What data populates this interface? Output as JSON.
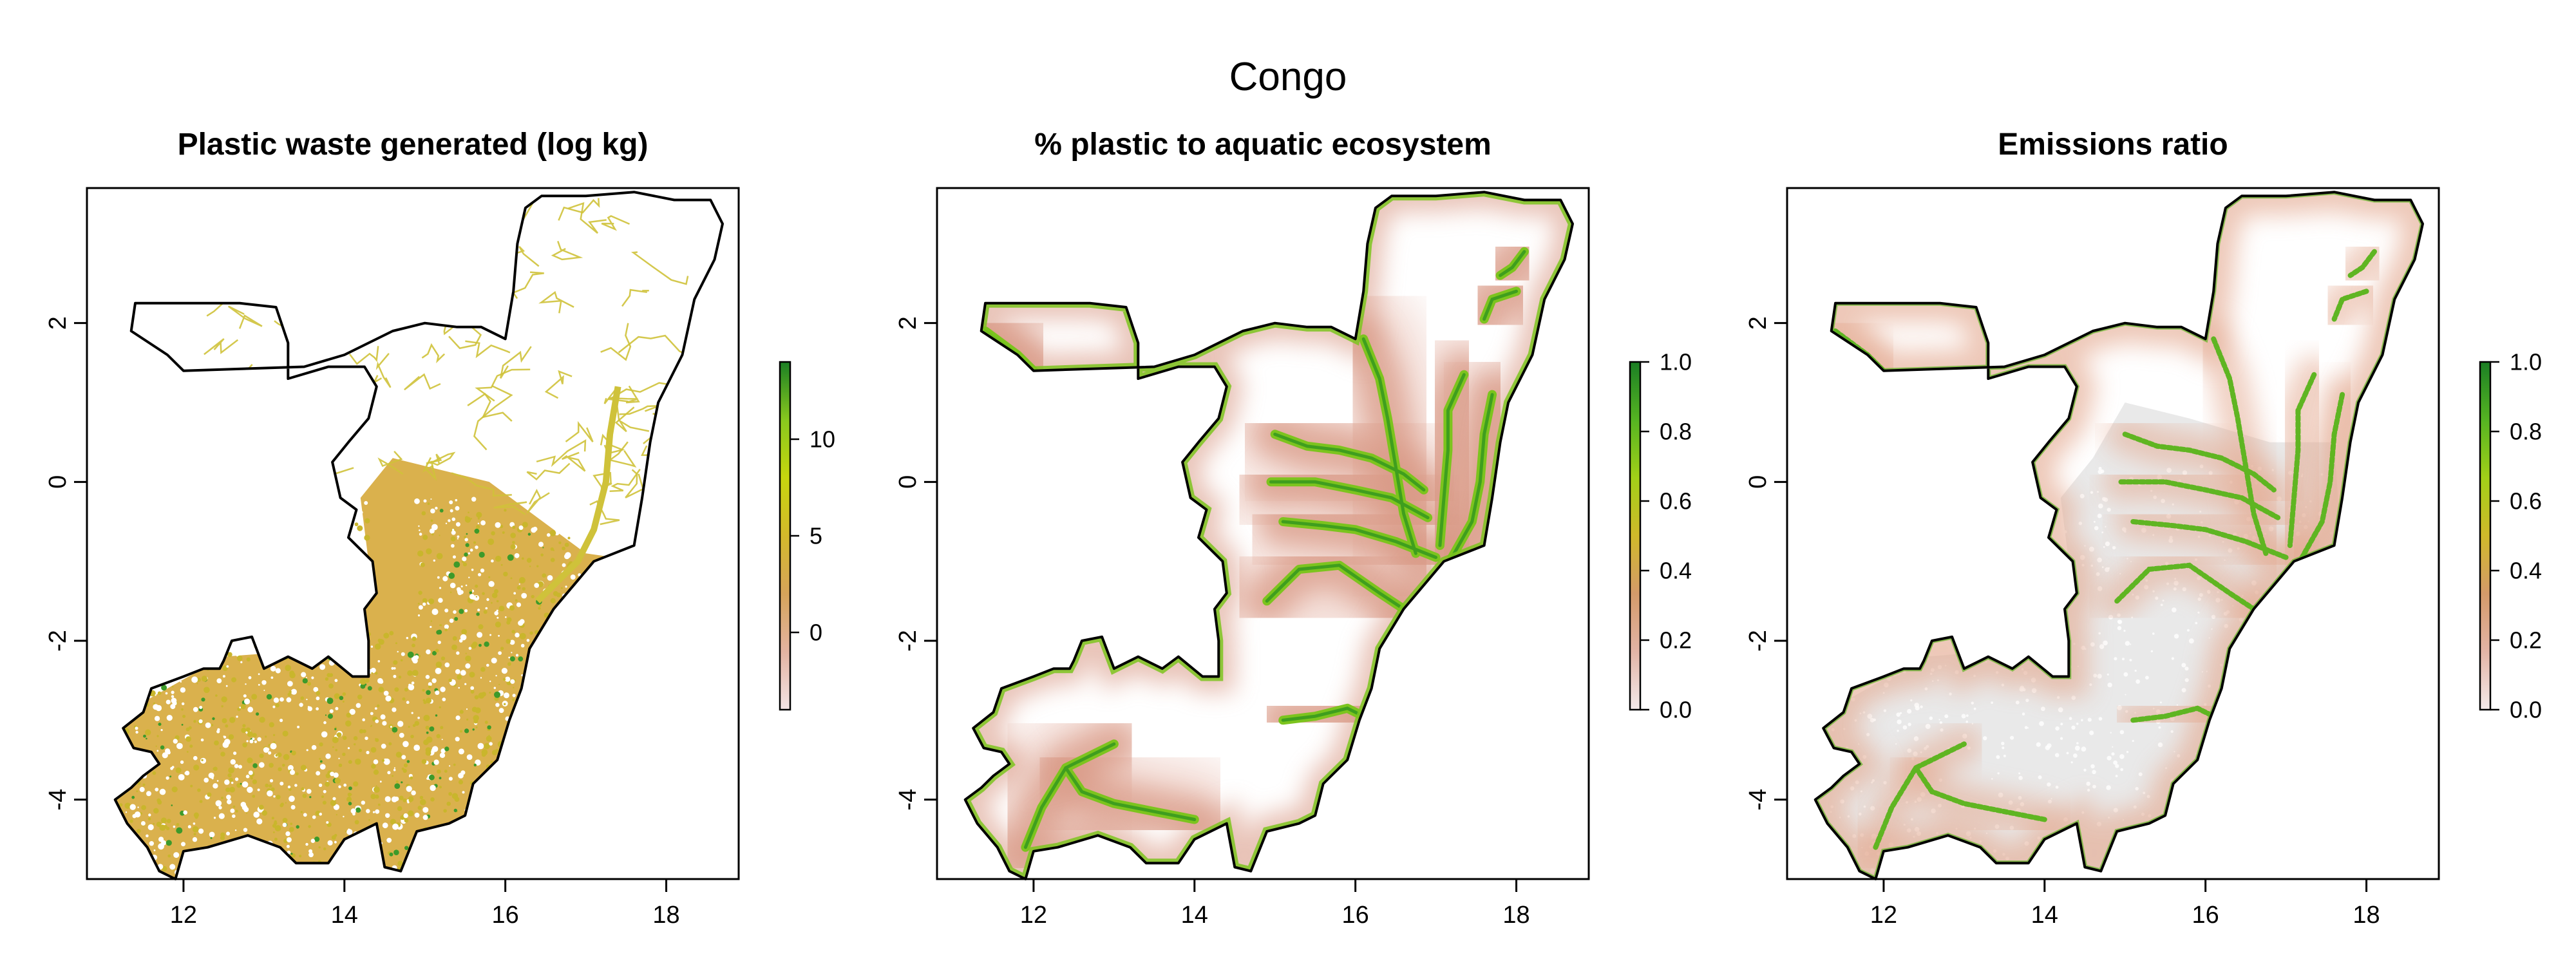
{
  "figure": {
    "title": "Congo"
  },
  "chart_data": [
    {
      "type": "heatmap",
      "title": "Plastic waste generated (log kg)",
      "xlabel": "",
      "ylabel": "",
      "xlim": [
        10.8,
        18.9
      ],
      "ylim": [
        -5.0,
        3.7
      ],
      "x_ticks": [
        12,
        14,
        16,
        18
      ],
      "y_ticks": [
        -4,
        -2,
        0,
        2
      ],
      "grid": false,
      "colorbar": {
        "range": [
          -4,
          14
        ],
        "ticks": [
          0,
          5,
          10
        ],
        "tick_labels": [
          "0",
          "5",
          "10"
        ],
        "colors": [
          "#f4e4e6",
          "#e3b3a1",
          "#d6a45a",
          "#d4b92b",
          "#c7d60e",
          "#88c81e",
          "#1b7f24"
        ]
      }
    },
    {
      "type": "heatmap",
      "title": "% plastic to aquatic ecosystem",
      "xlabel": "",
      "ylabel": "",
      "xlim": [
        10.8,
        18.9
      ],
      "ylim": [
        -5.0,
        3.7
      ],
      "x_ticks": [
        12,
        14,
        16,
        18
      ],
      "y_ticks": [
        -4,
        -2,
        0,
        2
      ],
      "grid": false,
      "colorbar": {
        "range": [
          0,
          1
        ],
        "ticks": [
          0,
          0.2,
          0.4,
          0.6,
          0.8,
          1.0
        ],
        "tick_labels": [
          "0.0",
          "0.2",
          "0.4",
          "0.6",
          "0.8",
          "1.0"
        ],
        "colors": [
          "#f4eaea",
          "#e2b4a6",
          "#d49a6a",
          "#d0b92a",
          "#a2d018",
          "#55b422",
          "#1b7f24"
        ]
      }
    },
    {
      "type": "heatmap",
      "title": "Emissions ratio",
      "xlabel": "",
      "ylabel": "",
      "xlim": [
        10.8,
        18.9
      ],
      "ylim": [
        -5.0,
        3.7
      ],
      "x_ticks": [
        12,
        14,
        16,
        18
      ],
      "y_ticks": [
        -4,
        -2,
        0,
        2
      ],
      "grid": false,
      "colorbar": {
        "range": [
          0,
          1
        ],
        "ticks": [
          0,
          0.2,
          0.4,
          0.6,
          0.8,
          1.0
        ],
        "tick_labels": [
          "0.0",
          "0.2",
          "0.4",
          "0.6",
          "0.8",
          "1.0"
        ],
        "colors": [
          "#f4eaea",
          "#e2b4a6",
          "#d49a6a",
          "#d0b92a",
          "#a2d018",
          "#55b422",
          "#1b7f24"
        ]
      }
    }
  ],
  "colors": {
    "boundary": "#000000",
    "waste_fill": "#d6a83a",
    "waste_fill_dense": "#c9b62c",
    "waste_roads": "#cfc23a",
    "waste_hot": "#3d9a2a",
    "aquatic_halo": "#e6b8aa",
    "aquatic_halo_inner": "#d99a86",
    "river_green": "#7cc41e",
    "river_core": "#3f9e1e",
    "ratio_grey": "#e9e9e9",
    "ratio_halo": "#e4aa92",
    "ratio_green": "#5fb522"
  }
}
